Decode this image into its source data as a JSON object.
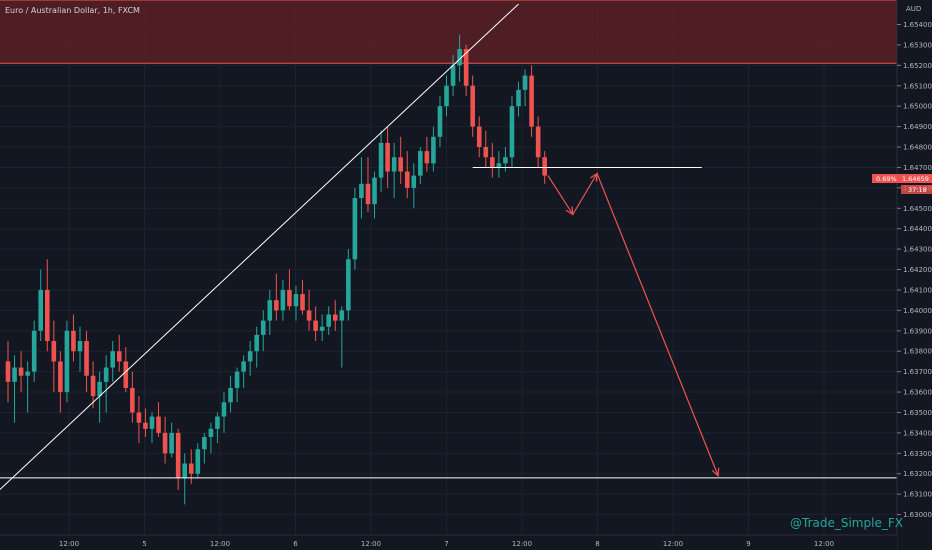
{
  "header": {
    "title": "Euro / Australian Dollar, 1h, FXCM",
    "currency": "AUD"
  },
  "watermark": "@Trade_Simple_FX",
  "price_tag": {
    "change": "0.69%",
    "price": "1.64659",
    "countdown": "37:18"
  },
  "colors": {
    "bg": "#131722",
    "up": "#26a69a",
    "down": "#ef5350",
    "grid": "#1e2230",
    "zone": "#5a1f25",
    "line": "#ffffff",
    "arrow": "#ef5350",
    "axis": "#2a2e39"
  },
  "chart_data": {
    "type": "candlestick",
    "title": "Euro / Australian Dollar, 1h, FXCM",
    "ylim": [
      1.629,
      1.6552
    ],
    "x_ticks": [
      "12:00",
      "5",
      "12:00",
      "6",
      "12:00",
      "7",
      "12:00",
      "8",
      "12:00",
      "9",
      "12:00"
    ],
    "y_ticks": [
      "1.65400",
      "1.65300",
      "1.65200",
      "1.65100",
      "1.65000",
      "1.64900",
      "1.64800",
      "1.64700",
      "1.64600",
      "1.64500",
      "1.64400",
      "1.64300",
      "1.64200",
      "1.64100",
      "1.64000",
      "1.63900",
      "1.63800",
      "1.63700",
      "1.63600",
      "1.63500",
      "1.63400",
      "1.63300",
      "1.63200",
      "1.63100",
      "1.63000"
    ],
    "candles": [
      [
        1.6375,
        1.6385,
        1.6355,
        1.6365
      ],
      [
        1.6365,
        1.6378,
        1.6345,
        1.6372
      ],
      [
        1.6372,
        1.638,
        1.636,
        1.6368
      ],
      [
        1.6368,
        1.6375,
        1.635,
        1.637
      ],
      [
        1.637,
        1.6395,
        1.6365,
        1.639
      ],
      [
        1.639,
        1.642,
        1.6385,
        1.641
      ],
      [
        1.641,
        1.6425,
        1.638,
        1.6385
      ],
      [
        1.6385,
        1.6395,
        1.636,
        1.6375
      ],
      [
        1.6375,
        1.638,
        1.635,
        1.636
      ],
      [
        1.636,
        1.6395,
        1.6355,
        1.639
      ],
      [
        1.639,
        1.6398,
        1.6375,
        1.638
      ],
      [
        1.638,
        1.6392,
        1.637,
        1.6385
      ],
      [
        1.6385,
        1.639,
        1.636,
        1.6368
      ],
      [
        1.6368,
        1.6375,
        1.6352,
        1.6358
      ],
      [
        1.6358,
        1.637,
        1.6345,
        1.6365
      ],
      [
        1.6365,
        1.6378,
        1.635,
        1.6372
      ],
      [
        1.6372,
        1.6385,
        1.6365,
        1.638
      ],
      [
        1.638,
        1.6388,
        1.637,
        1.6375
      ],
      [
        1.6375,
        1.6382,
        1.636,
        1.6362
      ],
      [
        1.6362,
        1.637,
        1.6345,
        1.635
      ],
      [
        1.635,
        1.6358,
        1.6335,
        1.6345
      ],
      [
        1.6345,
        1.6352,
        1.6338,
        1.6342
      ],
      [
        1.6342,
        1.635,
        1.6335,
        1.6348
      ],
      [
        1.6348,
        1.6355,
        1.6338,
        1.634
      ],
      [
        1.634,
        1.6348,
        1.6325,
        1.633
      ],
      [
        1.633,
        1.6345,
        1.6328,
        1.634
      ],
      [
        1.634,
        1.6342,
        1.6312,
        1.6318
      ],
      [
        1.6318,
        1.633,
        1.6305,
        1.6325
      ],
      [
        1.6325,
        1.6332,
        1.6315,
        1.632
      ],
      [
        1.632,
        1.6335,
        1.6318,
        1.6332
      ],
      [
        1.6332,
        1.634,
        1.6325,
        1.6338
      ],
      [
        1.6338,
        1.6345,
        1.633,
        1.6342
      ],
      [
        1.6342,
        1.635,
        1.6335,
        1.6348
      ],
      [
        1.6348,
        1.636,
        1.634,
        1.6355
      ],
      [
        1.6355,
        1.6368,
        1.635,
        1.6362
      ],
      [
        1.6362,
        1.6372,
        1.6355,
        1.637
      ],
      [
        1.637,
        1.6378,
        1.6362,
        1.6375
      ],
      [
        1.6375,
        1.6385,
        1.6368,
        1.638
      ],
      [
        1.638,
        1.6392,
        1.6372,
        1.6388
      ],
      [
        1.6388,
        1.64,
        1.638,
        1.6395
      ],
      [
        1.6395,
        1.641,
        1.6388,
        1.6405
      ],
      [
        1.6405,
        1.6418,
        1.6395,
        1.64
      ],
      [
        1.64,
        1.6415,
        1.6395,
        1.641
      ],
      [
        1.641,
        1.642,
        1.64,
        1.6402
      ],
      [
        1.6402,
        1.6412,
        1.6395,
        1.6408
      ],
      [
        1.6408,
        1.6415,
        1.6398,
        1.64
      ],
      [
        1.64,
        1.641,
        1.639,
        1.6395
      ],
      [
        1.6395,
        1.6402,
        1.6385,
        1.639
      ],
      [
        1.639,
        1.6398,
        1.6385,
        1.6392
      ],
      [
        1.6392,
        1.6402,
        1.6388,
        1.6398
      ],
      [
        1.6398,
        1.6405,
        1.639,
        1.6395
      ],
      [
        1.6395,
        1.6402,
        1.6372,
        1.64
      ],
      [
        1.64,
        1.643,
        1.6395,
        1.6425
      ],
      [
        1.6425,
        1.646,
        1.642,
        1.6455
      ],
      [
        1.6455,
        1.6475,
        1.6445,
        1.6462
      ],
      [
        1.6462,
        1.6475,
        1.6448,
        1.6452
      ],
      [
        1.6452,
        1.6468,
        1.6445,
        1.6465
      ],
      [
        1.6465,
        1.6488,
        1.6458,
        1.6482
      ],
      [
        1.6482,
        1.649,
        1.646,
        1.6468
      ],
      [
        1.6468,
        1.6482,
        1.6455,
        1.6475
      ],
      [
        1.6475,
        1.6485,
        1.6462,
        1.6468
      ],
      [
        1.6468,
        1.6478,
        1.6455,
        1.646
      ],
      [
        1.646,
        1.6472,
        1.645,
        1.6466
      ],
      [
        1.6466,
        1.648,
        1.6462,
        1.6478
      ],
      [
        1.6478,
        1.6485,
        1.6468,
        1.6472
      ],
      [
        1.6472,
        1.649,
        1.6468,
        1.6485
      ],
      [
        1.6485,
        1.6505,
        1.648,
        1.65
      ],
      [
        1.65,
        1.6515,
        1.6495,
        1.651
      ],
      [
        1.651,
        1.6525,
        1.6505,
        1.652
      ],
      [
        1.652,
        1.6535,
        1.6512,
        1.6528
      ],
      [
        1.6528,
        1.653,
        1.6505,
        1.651
      ],
      [
        1.651,
        1.6515,
        1.6485,
        1.649
      ],
      [
        1.649,
        1.6495,
        1.6475,
        1.648
      ],
      [
        1.648,
        1.6488,
        1.647,
        1.6475
      ],
      [
        1.6475,
        1.6482,
        1.6465,
        1.647
      ],
      [
        1.647,
        1.6478,
        1.6465,
        1.6472
      ],
      [
        1.6472,
        1.648,
        1.6468,
        1.6475
      ],
      [
        1.6475,
        1.6505,
        1.647,
        1.65
      ],
      [
        1.65,
        1.6512,
        1.6495,
        1.6508
      ],
      [
        1.6508,
        1.6518,
        1.65,
        1.6515
      ],
      [
        1.6515,
        1.652,
        1.6485,
        1.649
      ],
      [
        1.649,
        1.6495,
        1.647,
        1.6475
      ],
      [
        1.6475,
        1.6478,
        1.6462,
        1.6466
      ]
    ],
    "annotations": {
      "resistance_zone": [
        1.6521,
        1.6552
      ],
      "support_line": 1.6318,
      "neckline": 1.647,
      "trendline": {
        "from": [
          -2,
          1.631
        ],
        "to": [
          78,
          1.655
        ]
      },
      "projection_path": [
        [
          -7,
          1.6466
        ],
        [
          -5,
          1.6447
        ],
        [
          -3,
          1.6467
        ],
        [
          3,
          1.6319
        ]
      ]
    }
  }
}
